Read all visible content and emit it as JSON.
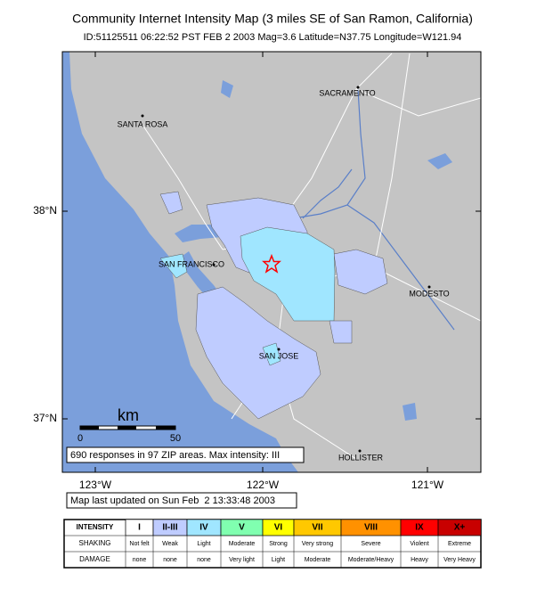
{
  "header": {
    "title": "Community Internet Intensity Map (3 miles SE of San Ramon, California)",
    "subtitle": "ID:51125511 06:22:52 PST FEB 2 2003 Mag=3.6 Latitude=N37.75 Longitude=W121.94"
  },
  "map": {
    "cities": [
      "SACRAMENTO",
      "SANTA ROSA",
      "SAN FRANCISCO",
      "MODESTO",
      "SAN JOSE",
      "HOLLISTER"
    ],
    "lat_labels": [
      "38°N",
      "37°N"
    ],
    "lon_labels": [
      "123°W",
      "122°W",
      "121°W"
    ],
    "scale": {
      "unit": "km",
      "ticks": [
        "0",
        "50"
      ]
    },
    "summary": "690 responses in 97 ZIP areas. Max intensity: III"
  },
  "footer": {
    "updated": "Map last updated on Sun Feb  2 13:33:48 2003"
  },
  "legend": {
    "row_headers": [
      "INTENSITY",
      "SHAKING",
      "DAMAGE"
    ],
    "columns": [
      {
        "intensity": "I",
        "shaking": "Not felt",
        "damage": "none",
        "color": "#ffffff"
      },
      {
        "intensity": "II-III",
        "shaking": "Weak",
        "damage": "none",
        "color": "#bfccff"
      },
      {
        "intensity": "IV",
        "shaking": "Light",
        "damage": "none",
        "color": "#a0e6ff"
      },
      {
        "intensity": "V",
        "shaking": "Moderate",
        "damage": "Very light",
        "color": "#80ffb0"
      },
      {
        "intensity": "VI",
        "shaking": "Strong",
        "damage": "Light",
        "color": "#ffff00"
      },
      {
        "intensity": "VII",
        "shaking": "Very strong",
        "damage": "Moderate",
        "color": "#ffc800"
      },
      {
        "intensity": "VIII",
        "shaking": "Severe",
        "damage": "Moderate/Heavy",
        "color": "#ff9100"
      },
      {
        "intensity": "IX",
        "shaking": "Violent",
        "damage": "Heavy",
        "color": "#ff0000"
      },
      {
        "intensity": "X+",
        "shaking": "Extreme",
        "damage": "Very Heavy",
        "color": "#c80000"
      }
    ]
  }
}
